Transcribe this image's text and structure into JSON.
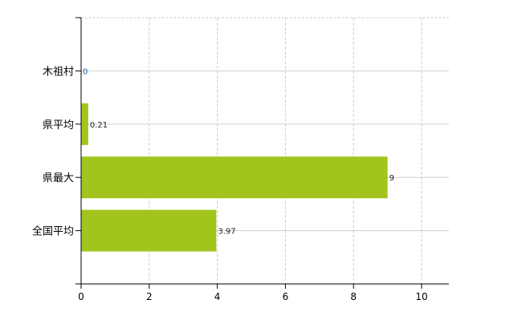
{
  "chart_data": {
    "type": "bar",
    "orientation": "horizontal",
    "categories": [
      "木祖村",
      "県平均",
      "県最大",
      "全国平均"
    ],
    "values": [
      0,
      0.21,
      9,
      3.97
    ],
    "value_labels": [
      "0",
      "0.21",
      "9",
      "3.97"
    ],
    "title": "",
    "xlabel": "",
    "ylabel": "",
    "xlim": [
      0,
      10.8
    ],
    "xticks": [
      0,
      2,
      4,
      6,
      8,
      10
    ],
    "xtick_labels": [
      "0",
      "2",
      "4",
      "6",
      "8",
      "10"
    ],
    "grid": true,
    "colors": {
      "bar": "#a2c51e",
      "grid": "#d0d0d0",
      "axis": "#000000",
      "label": "#222222",
      "zero_label": "#1a5fb4"
    }
  }
}
